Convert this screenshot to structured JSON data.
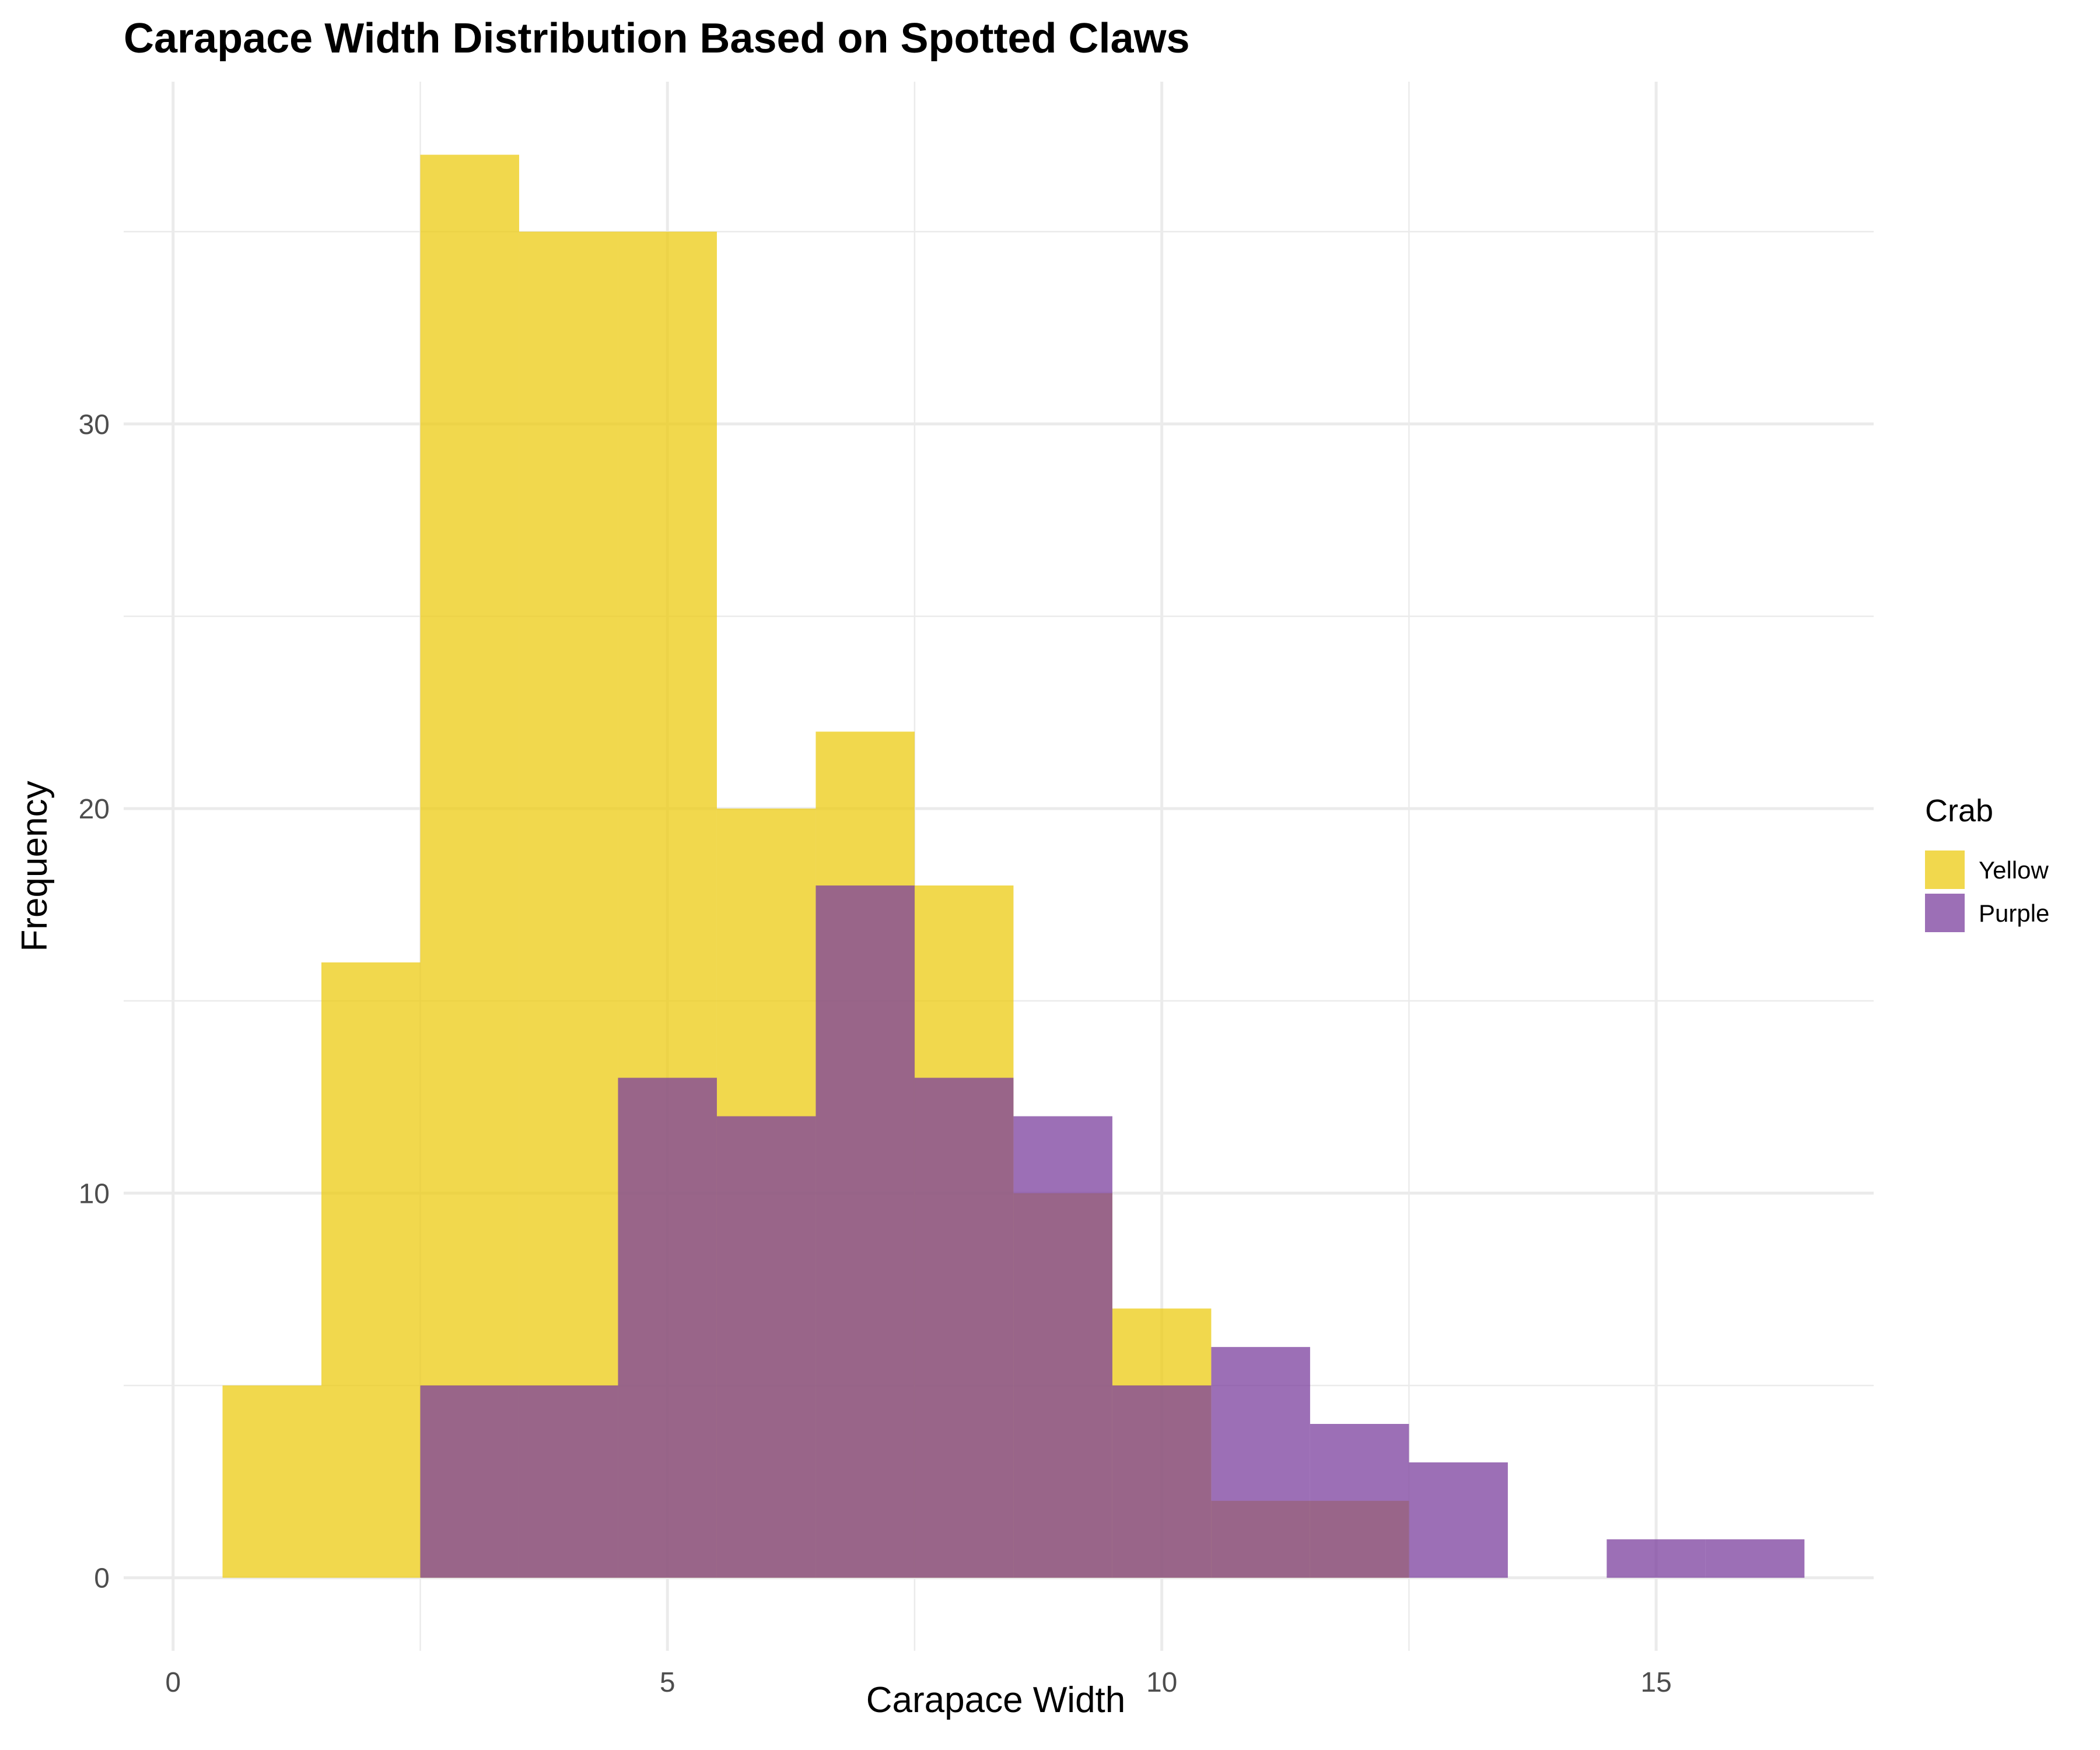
{
  "chart_data": {
    "type": "histogram",
    "title": "Carapace Width Distribution Based on Spotted Claws",
    "xlabel": "Carapace Width",
    "ylabel": "Frequency",
    "xlim": [
      -0.5,
      17.2
    ],
    "ylim": [
      -1.9,
      38.9
    ],
    "x_ticks": [
      0,
      5,
      10,
      15
    ],
    "y_ticks": [
      0,
      10,
      20,
      30
    ],
    "x_tick_labels": [
      "0",
      "5",
      "10",
      "15"
    ],
    "y_tick_labels": [
      "0",
      "10",
      "20",
      "30"
    ],
    "binwidth": 1,
    "grid": true,
    "legend": {
      "title": "Crab",
      "position": "right"
    },
    "series": [
      {
        "name": "Yellow",
        "color": "#ECCB12",
        "bins": [
          {
            "center": 1,
            "count": 5
          },
          {
            "center": 2,
            "count": 16
          },
          {
            "center": 3,
            "count": 37
          },
          {
            "center": 4,
            "count": 35
          },
          {
            "center": 5,
            "count": 35
          },
          {
            "center": 6,
            "count": 20
          },
          {
            "center": 7,
            "count": 22
          },
          {
            "center": 8,
            "count": 18
          },
          {
            "center": 9,
            "count": 10
          },
          {
            "center": 10,
            "count": 7
          },
          {
            "center": 11,
            "count": 2
          },
          {
            "center": 12,
            "count": 2
          }
        ]
      },
      {
        "name": "Purple",
        "color": "#7B3F9E",
        "bins": [
          {
            "center": 3,
            "count": 5
          },
          {
            "center": 4,
            "count": 5
          },
          {
            "center": 5,
            "count": 13
          },
          {
            "center": 6,
            "count": 12
          },
          {
            "center": 7,
            "count": 18
          },
          {
            "center": 8,
            "count": 13
          },
          {
            "center": 9,
            "count": 12
          },
          {
            "center": 10,
            "count": 5
          },
          {
            "center": 11,
            "count": 6
          },
          {
            "center": 12,
            "count": 4
          },
          {
            "center": 13,
            "count": 3
          },
          {
            "center": 15,
            "count": 1
          },
          {
            "center": 16,
            "count": 1
          }
        ]
      }
    ]
  }
}
